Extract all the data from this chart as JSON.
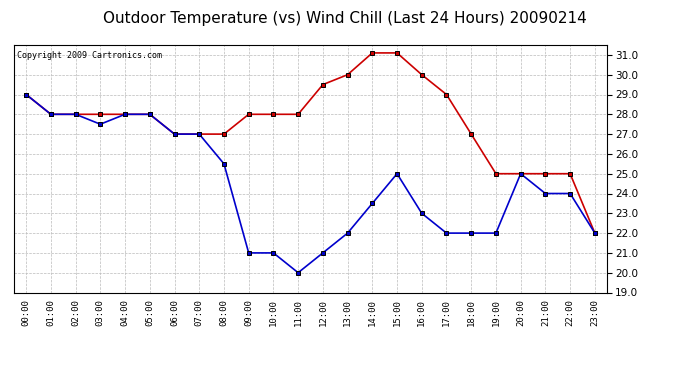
{
  "title": "Outdoor Temperature (vs) Wind Chill (Last 24 Hours) 20090214",
  "copyright": "Copyright 2009 Cartronics.com",
  "hours": [
    "00:00",
    "01:00",
    "02:00",
    "03:00",
    "04:00",
    "05:00",
    "06:00",
    "07:00",
    "08:00",
    "09:00",
    "10:00",
    "11:00",
    "12:00",
    "13:00",
    "14:00",
    "15:00",
    "16:00",
    "17:00",
    "18:00",
    "19:00",
    "20:00",
    "21:00",
    "22:00",
    "23:00"
  ],
  "temp": [
    29.0,
    28.0,
    28.0,
    28.0,
    28.0,
    28.0,
    27.0,
    27.0,
    27.0,
    28.0,
    28.0,
    28.0,
    29.5,
    30.0,
    31.1,
    31.1,
    30.0,
    29.0,
    27.0,
    25.0,
    25.0,
    25.0,
    25.0,
    22.0
  ],
  "wind_chill": [
    29.0,
    28.0,
    28.0,
    27.5,
    28.0,
    28.0,
    27.0,
    27.0,
    25.5,
    21.0,
    21.0,
    20.0,
    21.0,
    22.0,
    23.5,
    25.0,
    23.0,
    22.0,
    22.0,
    22.0,
    25.0,
    24.0,
    24.0,
    22.0
  ],
  "temp_color": "#cc0000",
  "wind_chill_color": "#0000cc",
  "marker": "s",
  "marker_color": "#000000",
  "marker_size": 3,
  "ylim": [
    19.0,
    31.5
  ],
  "yticks": [
    19.0,
    20.0,
    21.0,
    22.0,
    23.0,
    24.0,
    25.0,
    26.0,
    27.0,
    28.0,
    29.0,
    30.0,
    31.0
  ],
  "grid_color": "#bbbbbb",
  "bg_color": "#ffffff",
  "title_fontsize": 11,
  "copyright_fontsize": 6,
  "line_width": 1.2,
  "fig_width": 6.9,
  "fig_height": 3.75,
  "dpi": 100
}
